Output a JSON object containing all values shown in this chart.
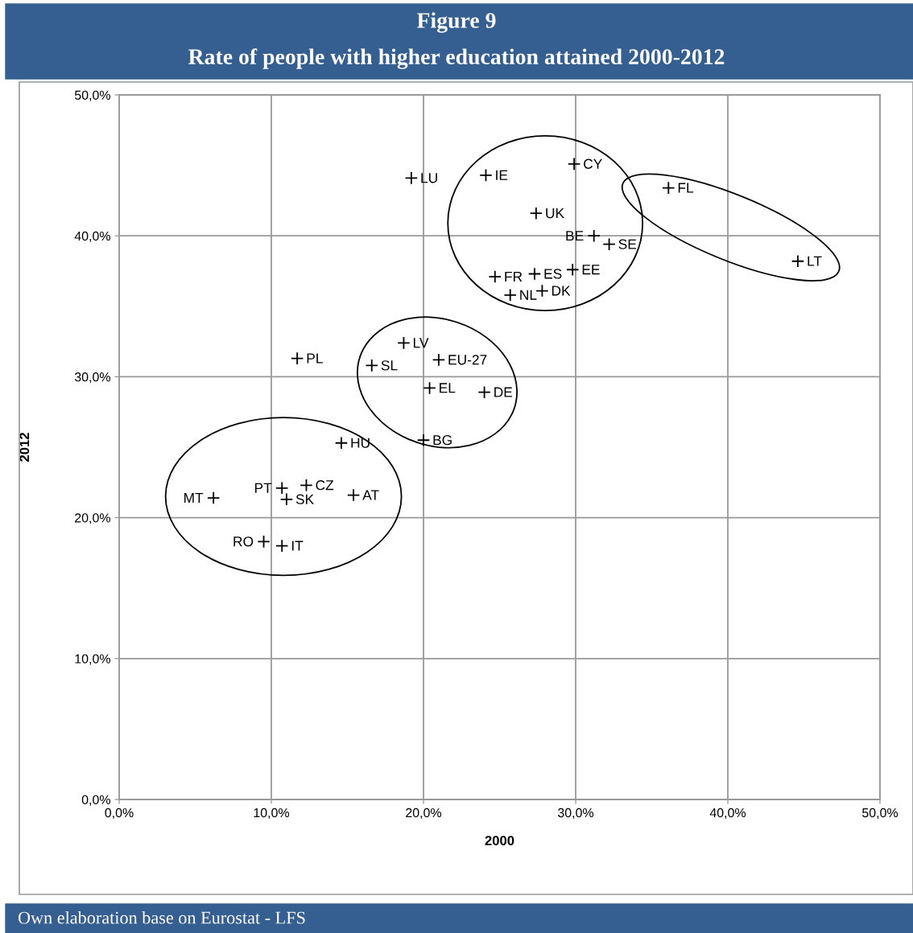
{
  "chart_data": {
    "type": "scatter",
    "title": "Figure 9",
    "subtitle": "Rate of people with higher education attained 2000-2012",
    "xlabel": "2000",
    "ylabel": "2012",
    "x": [
      19.2,
      24.1,
      29.9,
      27.4,
      31.2,
      32.2,
      29.8,
      27.3,
      24.7,
      27.8,
      25.7,
      36.1,
      44.6,
      18.7,
      11.7,
      16.6,
      21.0,
      20.4,
      24.0,
      20.0,
      14.6,
      10.7,
      12.3,
      11.0,
      15.4,
      6.2,
      9.5,
      10.7
    ],
    "values": [
      44.1,
      44.3,
      45.1,
      41.6,
      40.0,
      39.4,
      37.6,
      37.3,
      37.1,
      36.1,
      35.8,
      43.4,
      38.2,
      32.4,
      31.3,
      30.8,
      31.2,
      29.2,
      28.9,
      25.5,
      25.3,
      22.1,
      22.3,
      21.3,
      21.6,
      21.4,
      18.3,
      18.0
    ],
    "value_labels": [
      "LU",
      "IE",
      "CY",
      "UK",
      "BE",
      "SE",
      "EE",
      "ES",
      "FR",
      "DK",
      "NL",
      "FL",
      "LT",
      "LV",
      "PL",
      "SL",
      "EU-27",
      "EL",
      "DE",
      "BG",
      "HU",
      "PT",
      "CZ",
      "SK",
      "AT",
      "MT",
      "RO",
      "IT"
    ],
    "color": "#000000",
    "marker": "cross",
    "xlim": [
      0,
      50
    ],
    "ylim": [
      0,
      50
    ],
    "xticks": [
      {
        "value": 0,
        "label": "0,0%"
      },
      {
        "value": 10,
        "label": "10,0%"
      },
      {
        "value": 20,
        "label": "20,0%"
      },
      {
        "value": 30,
        "label": "30,0%"
      },
      {
        "value": 40,
        "label": "40,0%"
      },
      {
        "value": 50,
        "label": "50,0%"
      }
    ],
    "yticks": [
      {
        "value": 0,
        "label": "0,0%"
      },
      {
        "value": 10,
        "label": "10,0%"
      },
      {
        "value": 20,
        "label": "20,0%"
      },
      {
        "value": 30,
        "label": "30,0%"
      },
      {
        "value": 40,
        "label": "40,0%"
      },
      {
        "value": 50,
        "label": "50,0%"
      }
    ],
    "grid": true,
    "annotations": [
      "Own elaboration base on Eurostat - LFS"
    ]
  }
}
